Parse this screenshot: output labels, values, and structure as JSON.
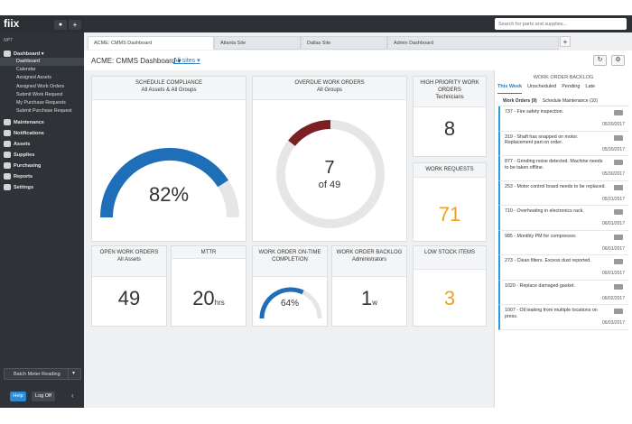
{
  "app": {
    "logo": "fiix",
    "user_icon": "user-icon",
    "add_icon": "plus-icon"
  },
  "search": {
    "placeholder": "Search for parts and supplies..."
  },
  "sidebar": {
    "org": "NPT",
    "sections": [
      {
        "label": "Dashboard ▾",
        "icon": "dashboard-icon"
      },
      {
        "label": "Maintenance",
        "icon": "wrench-icon"
      },
      {
        "label": "Notifications",
        "icon": "chat-icon"
      },
      {
        "label": "Assets",
        "icon": "assets-icon"
      },
      {
        "label": "Supplies",
        "icon": "truck-icon"
      },
      {
        "label": "Purchasing",
        "icon": "purchasing-icon"
      },
      {
        "label": "Reports",
        "icon": "reports-icon"
      },
      {
        "label": "Settings",
        "icon": "gear-icon"
      }
    ],
    "dashboard_items": [
      "Dashboard",
      "Calendar",
      "Assigned Assets",
      "Assigned Work Orders",
      "Submit Work Request",
      "My Purchase Requests",
      "Submit Purchase Request"
    ],
    "batch_label": "Batch Meter Reading",
    "help_label": "Help",
    "logoff_label": "Log Off"
  },
  "tabs": [
    "ACME: CMMS Dashboard",
    "Atlanta Site",
    "Dallas Site",
    "Admin Dashboard"
  ],
  "header": {
    "title": "ACME: CMMS Dashboard",
    "title_caret": "▾",
    "sites": "All sites",
    "sites_caret": "▾"
  },
  "cards": {
    "schedule": {
      "title": "SCHEDULE COMPLIANCE",
      "sub": "All Assets & All Groups",
      "value": "82%",
      "pct": 82
    },
    "overdue": {
      "title": "OVERDUE WORK ORDERS",
      "sub": "All Groups",
      "value": "7",
      "of": "of 49",
      "count": 7,
      "total": 49
    },
    "highprio": {
      "title": "HIGH PRIORITY WORK ORDERS",
      "sub": "Technicians",
      "value": "8"
    },
    "requests": {
      "title": "WORK REQUESTS",
      "value": "71"
    },
    "open": {
      "title": "OPEN WORK ORDERS",
      "sub": "All Assets",
      "value": "49"
    },
    "mttr": {
      "title": "MTTR",
      "value": "20",
      "unit": "hrs"
    },
    "ontime": {
      "title": "WORK ORDER ON-TIME COMPLETION",
      "value": "64%",
      "pct": 64
    },
    "backlog": {
      "title": "WORK ORDER BACKLOG",
      "sub": "Administrators",
      "value": "1",
      "unit": "w"
    },
    "lowstock": {
      "title": "LOW STOCK ITEMS",
      "value": "3"
    }
  },
  "backlog_panel": {
    "title": "WORK ORDER BACKLOG",
    "tabs": [
      "This Week",
      "Unscheduled",
      "Pending",
      "Late"
    ],
    "subtabs": [
      "Work Orders (9)",
      "Schedule Maintenance (10)"
    ],
    "items": [
      {
        "text": "737 - Fire safety inspection.",
        "date": "05/30/2017"
      },
      {
        "text": "319 - Shaft has snapped on motor. Replacement part on order.",
        "date": "05/30/2017"
      },
      {
        "text": "877 - Grinding noise detected. Machine needs to be taken offline.",
        "date": "05/30/2017"
      },
      {
        "text": "253 - Motor control board needs to be replaced.",
        "date": "05/31/2017"
      },
      {
        "text": "710 - Overheating in electronics rack.",
        "date": "06/01/2017"
      },
      {
        "text": "985 - Monthly PM for compressor.",
        "date": "06/01/2017"
      },
      {
        "text": "273 - Clean filters. Excess dust reported.",
        "date": "06/01/2017"
      },
      {
        "text": "1020 - Replace damaged gasket.",
        "date": "06/02/2017"
      },
      {
        "text": "1007 - Oil leaking from multiple locations on press.",
        "date": "06/03/2017"
      }
    ]
  },
  "colors": {
    "accent": "#2a7ac0",
    "gauge_blue": "#1f6eb8",
    "overdue_red": "#7b1f24",
    "orange": "#f0a020",
    "sidebar": "#2f3338"
  }
}
